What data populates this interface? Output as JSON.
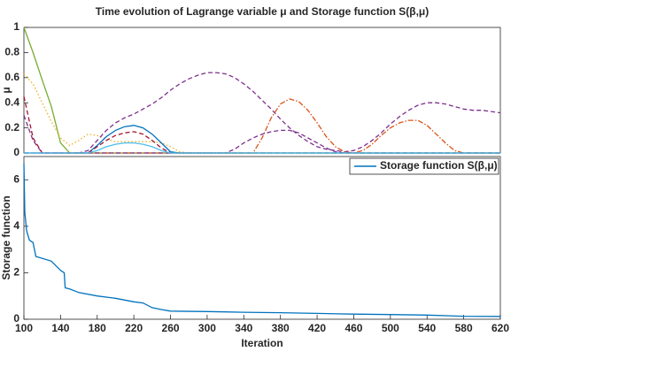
{
  "chart_data": [
    {
      "type": "line",
      "title": "Time evolution of Lagrange variable μ and Storage function S(β,μ)",
      "y_label": "μ",
      "xlim": [
        100,
        620
      ],
      "ylim": [
        0,
        1
      ],
      "yticks": [
        0,
        0.2,
        0.4,
        0.6,
        0.8,
        1
      ],
      "x": [
        100,
        110,
        120,
        130,
        140,
        150,
        160,
        170,
        180,
        190,
        200,
        210,
        220,
        230,
        240,
        250,
        260,
        270,
        280,
        290,
        300,
        310,
        320,
        330,
        340,
        350,
        360,
        370,
        380,
        390,
        400,
        410,
        420,
        430,
        440,
        450,
        460,
        470,
        480,
        490,
        500,
        510,
        520,
        530,
        540,
        550,
        560,
        570,
        580,
        590,
        600,
        610,
        620
      ],
      "series": [
        {
          "color": "#77ac30",
          "dash": "none",
          "values": [
            1,
            0.8,
            0.58,
            0.37,
            0.08,
            0,
            0,
            0,
            0,
            0,
            0,
            0,
            0,
            0,
            0,
            0,
            0,
            0,
            0,
            0,
            0,
            0,
            0,
            0,
            0,
            0,
            0,
            0,
            0,
            0,
            0,
            0,
            0,
            0,
            0,
            0,
            0,
            0,
            0,
            0,
            0,
            0,
            0,
            0,
            0,
            0,
            0,
            0,
            0,
            0,
            0,
            0,
            0
          ]
        },
        {
          "color": "#edb120",
          "dash": "1.5,2.5",
          "values": [
            0.63,
            0.55,
            0.4,
            0.25,
            0.12,
            0.06,
            0.1,
            0.15,
            0.14,
            0.11,
            0.09,
            0.09,
            0.09,
            0.09,
            0.09,
            0.08,
            0.05,
            0.01,
            0,
            0,
            0,
            0,
            0,
            0,
            0,
            0,
            0,
            0,
            0,
            0,
            0,
            0,
            0,
            0,
            0,
            0,
            0,
            0,
            0,
            0,
            0,
            0,
            0,
            0,
            0,
            0,
            0,
            0,
            0,
            0,
            0,
            0,
            0
          ]
        },
        {
          "color": "#7e2f8e",
          "dash": "5,3",
          "values": [
            0.3,
            0.1,
            0,
            0,
            0,
            0,
            0,
            0.02,
            0.1,
            0.18,
            0.24,
            0.28,
            0.31,
            0.35,
            0.39,
            0.44,
            0.5,
            0.55,
            0.59,
            0.62,
            0.64,
            0.64,
            0.63,
            0.6,
            0.55,
            0.49,
            0.42,
            0.35,
            0.27,
            0.2,
            0.14,
            0.09,
            0.05,
            0.03,
            0.02,
            0.01,
            0.02,
            0.05,
            0.1,
            0.16,
            0.23,
            0.29,
            0.34,
            0.38,
            0.4,
            0.4,
            0.39,
            0.37,
            0.35,
            0.34,
            0.34,
            0.33,
            0.32
          ]
        },
        {
          "color": "#d95319",
          "dash": "6,2,1.5,2",
          "values": [
            0,
            0,
            0,
            0,
            0,
            0,
            0,
            0,
            0,
            0,
            0,
            0,
            0,
            0,
            0,
            0,
            0,
            0,
            0,
            0,
            0,
            0,
            0,
            0,
            0,
            0,
            0.12,
            0.28,
            0.39,
            0.43,
            0.41,
            0.34,
            0.24,
            0.13,
            0.05,
            0.01,
            0,
            0.02,
            0.07,
            0.14,
            0.2,
            0.24,
            0.26,
            0.26,
            0.22,
            0.15,
            0.08,
            0.02,
            0,
            0,
            0,
            0,
            0
          ]
        },
        {
          "color": "#7e2f8e",
          "dash": "5,3",
          "values": [
            0,
            0,
            0,
            0,
            0,
            0,
            0,
            0,
            0,
            0,
            0,
            0,
            0,
            0,
            0,
            0,
            0,
            0,
            0,
            0,
            0,
            0,
            0,
            0.03,
            0.08,
            0.12,
            0.15,
            0.17,
            0.18,
            0.18,
            0.16,
            0.12,
            0.08,
            0.04,
            0.01,
            0,
            0,
            0,
            0,
            0,
            0,
            0,
            0,
            0,
            0,
            0,
            0,
            0,
            0,
            0,
            0,
            0,
            0
          ]
        },
        {
          "color": "#0072bd",
          "dash": "none",
          "values": [
            0,
            0,
            0,
            0,
            0,
            0,
            0,
            0,
            0.06,
            0.13,
            0.18,
            0.21,
            0.22,
            0.2,
            0.15,
            0.08,
            0.01,
            0,
            0,
            0,
            0,
            0,
            0,
            0,
            0,
            0,
            0,
            0,
            0,
            0,
            0,
            0,
            0,
            0,
            0,
            0,
            0,
            0,
            0,
            0,
            0,
            0,
            0,
            0,
            0,
            0,
            0,
            0,
            0,
            0,
            0,
            0,
            0
          ]
        },
        {
          "color": "#a2142f",
          "dash": "5,3",
          "values": [
            0.45,
            0.12,
            0,
            0,
            0,
            0,
            0,
            0,
            0.05,
            0.1,
            0.14,
            0.16,
            0.17,
            0.15,
            0.1,
            0.04,
            0,
            0,
            0,
            0,
            0,
            0,
            0,
            0,
            0,
            0,
            0,
            0,
            0,
            0,
            0,
            0,
            0,
            0,
            0,
            0,
            0,
            0,
            0,
            0,
            0,
            0,
            0,
            0,
            0,
            0,
            0,
            0,
            0,
            0,
            0,
            0,
            0
          ]
        },
        {
          "color": "#4dbeee",
          "dash": "none",
          "values": [
            0,
            0,
            0,
            0,
            0,
            0,
            0,
            0,
            0.02,
            0.05,
            0.07,
            0.08,
            0.08,
            0.07,
            0.05,
            0.02,
            0,
            0,
            0,
            0,
            0,
            0,
            0,
            0,
            0,
            0,
            0,
            0,
            0,
            0,
            0,
            0,
            0,
            0,
            0,
            0,
            0,
            0,
            0,
            0,
            0,
            0,
            0,
            0,
            0,
            0,
            0,
            0,
            0,
            0,
            0,
            0,
            0
          ]
        }
      ]
    },
    {
      "type": "line",
      "x_label": "Iteration",
      "y_label": "Storage function",
      "xlim": [
        100,
        620
      ],
      "ylim": [
        0,
        7
      ],
      "xticks": [
        100,
        140,
        180,
        220,
        260,
        300,
        340,
        380,
        420,
        460,
        500,
        540,
        580,
        620
      ],
      "yticks": [
        0,
        2,
        4,
        6
      ],
      "legend": "northeast",
      "x": [
        100,
        101,
        103,
        106,
        110,
        113,
        130,
        140,
        144,
        145,
        150,
        160,
        180,
        200,
        220,
        230,
        240,
        250,
        260,
        300,
        340,
        380,
        420,
        460,
        500,
        540,
        580,
        620
      ],
      "series": [
        {
          "name": "Storage function S(β,μ)",
          "color": "#0072bd",
          "dash": "none",
          "values": [
            6.7,
            4.6,
            3.8,
            3.4,
            3.3,
            2.7,
            2.5,
            2.1,
            2.0,
            1.35,
            1.3,
            1.15,
            1.0,
            0.9,
            0.75,
            0.7,
            0.5,
            0.42,
            0.35,
            0.33,
            0.3,
            0.28,
            0.25,
            0.22,
            0.2,
            0.18,
            0.13,
            0.12
          ]
        }
      ]
    }
  ]
}
